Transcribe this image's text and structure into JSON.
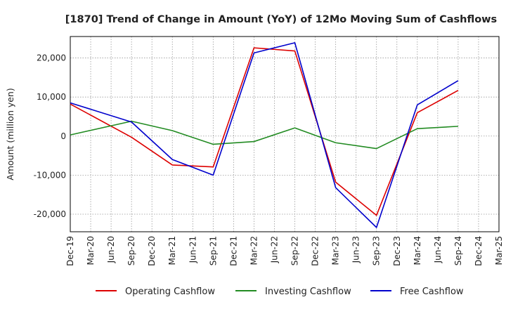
{
  "chart_data": {
    "type": "line",
    "title": "[1870]  Trend of Change in Amount (YoY) of 12Mo Moving Sum of Cashflows",
    "xlabel": "",
    "ylabel": "Amount (million yen)",
    "categories": [
      "Dec-19",
      "Mar-20",
      "Jun-20",
      "Sep-20",
      "Dec-20",
      "Mar-21",
      "Jun-21",
      "Sep-21",
      "Dec-21",
      "Mar-22",
      "Jun-22",
      "Sep-22",
      "Dec-22",
      "Mar-23",
      "Jun-23",
      "Sep-23",
      "Dec-23",
      "Mar-24",
      "Jun-24",
      "Sep-24",
      "Dec-24",
      "Mar-25"
    ],
    "ylim": [
      -24500,
      25500
    ],
    "yticks": [
      -20000,
      -10000,
      0,
      10000,
      20000
    ],
    "ytick_labels": [
      "-20,000",
      "-10,000",
      "0",
      "10,000",
      "20,000"
    ],
    "grid": true,
    "legend_position": "bottom",
    "series": [
      {
        "name": "Operating Cashflow",
        "color": "#dd0000",
        "values": [
          8200,
          null,
          null,
          -300,
          null,
          -7400,
          null,
          -7900,
          null,
          22600,
          null,
          21800,
          null,
          -11800,
          null,
          -20300,
          null,
          6000,
          null,
          11700,
          null,
          null
        ]
      },
      {
        "name": "Investing Cashflow",
        "color": "#228b22",
        "values": [
          300,
          null,
          null,
          3800,
          null,
          1400,
          null,
          -2100,
          null,
          -1400,
          null,
          2100,
          null,
          -1700,
          null,
          -3200,
          null,
          1900,
          null,
          2500,
          null,
          null
        ]
      },
      {
        "name": "Free Cashflow",
        "color": "#0000cc",
        "values": [
          8500,
          null,
          null,
          3600,
          null,
          -6000,
          null,
          -10000,
          null,
          21300,
          null,
          23900,
          null,
          -13200,
          null,
          -23400,
          null,
          8000,
          null,
          14200,
          null,
          null
        ]
      }
    ]
  }
}
